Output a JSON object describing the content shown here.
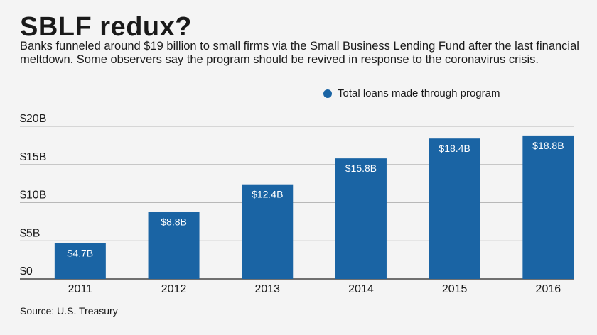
{
  "header": {
    "title": "SBLF redux?",
    "subtitle": "Banks funneled around $19 billion to small firms via the Small Business Lending Fund after the last financial meltdown. Some observers say the program should be revived in response to the coronavirus crisis."
  },
  "footer": {
    "source": "Source: U.S. Treasury"
  },
  "colors": {
    "bar": "#1a64a4",
    "grid": "#b8b8b8",
    "baseline": "#444444",
    "label": "#ffffff",
    "background": "#f4f4f4"
  },
  "chart_data": {
    "type": "bar",
    "title": "",
    "xlabel": "",
    "ylabel": "",
    "categories": [
      "2011",
      "2012",
      "2013",
      "2014",
      "2015",
      "2016"
    ],
    "series": [
      {
        "name": "Total loans made through program",
        "values": [
          4.7,
          8.8,
          12.4,
          15.8,
          18.4,
          18.8
        ],
        "data_labels": [
          "$4.7B",
          "$8.8B",
          "$12.4B",
          "$15.8B",
          "$18.4B",
          "$18.8B"
        ]
      }
    ],
    "ylim": [
      0,
      20
    ],
    "y_ticks": [
      0,
      5,
      10,
      15,
      20
    ],
    "y_tick_labels": [
      "$0",
      "$5B",
      "$10B",
      "$15B",
      "$20B"
    ],
    "grid": true,
    "legend_position": "top-right"
  }
}
